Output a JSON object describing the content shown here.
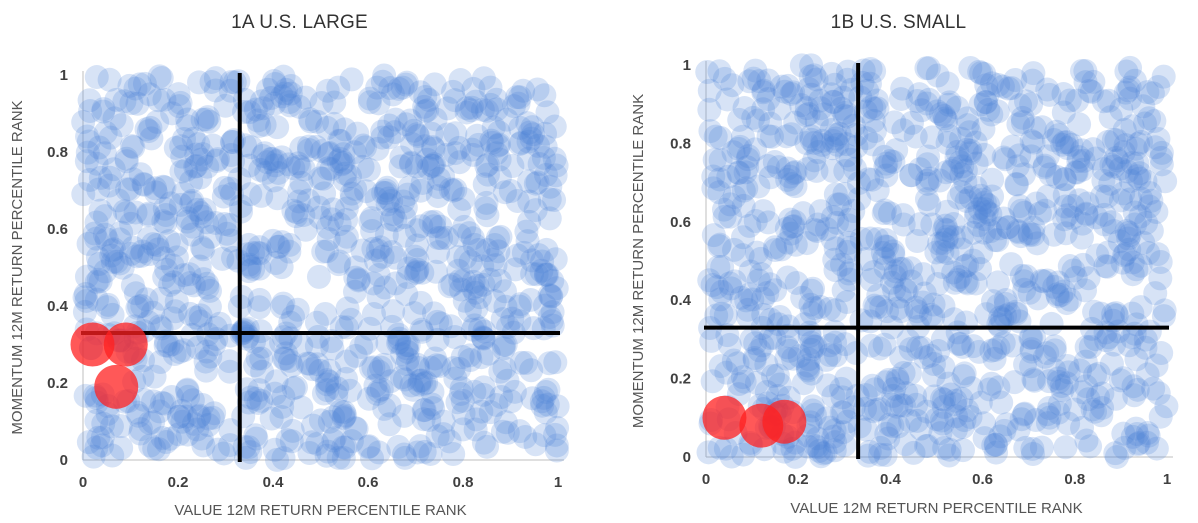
{
  "colors": {
    "bubble": "#4a7fd4",
    "highlight": "#ff2020",
    "quadrant_lines": "#000000",
    "axis_line": "#bfbfbf"
  },
  "chart_data": [
    {
      "type": "scatter",
      "title": "1A U.S. LARGE",
      "xlabel": "VALUE 12M RETURN PERCENTILE RANK",
      "ylabel": "MOMENTUM 12M RETURN PERCENTILE RANK",
      "xlim": [
        0,
        1
      ],
      "ylim": [
        0,
        1
      ],
      "xticks": [
        "0",
        "0.2",
        "0.4",
        "0.6",
        "0.8",
        "1"
      ],
      "yticks": [
        "0",
        "0.2",
        "0.4",
        "0.6",
        "0.8",
        "1"
      ],
      "grid": false,
      "quadrant_lines": {
        "x": 0.33,
        "y": 0.33
      },
      "highlight_points": [
        {
          "x": 0.02,
          "y": 0.3
        },
        {
          "x": 0.09,
          "y": 0.3
        },
        {
          "x": 0.07,
          "y": 0.19
        }
      ],
      "point_count": 1000,
      "seed": 17
    },
    {
      "type": "scatter",
      "title": "1B U.S. SMALL",
      "xlabel": "VALUE 12M RETURN PERCENTILE RANK",
      "ylabel": "MOMENTUM 12M RETURN PERCENTILE RANK",
      "xlim": [
        0,
        1
      ],
      "ylim": [
        0,
        1
      ],
      "xticks": [
        "0",
        "0.2",
        "0.4",
        "0.6",
        "0.8",
        "1"
      ],
      "yticks": [
        "0",
        "0.2",
        "0.4",
        "0.6",
        "0.8",
        "1"
      ],
      "grid": false,
      "quadrant_lines": {
        "x": 0.33,
        "y": 0.33
      },
      "highlight_points": [
        {
          "x": 0.04,
          "y": 0.1
        },
        {
          "x": 0.12,
          "y": 0.08
        },
        {
          "x": 0.17,
          "y": 0.09
        }
      ],
      "point_count": 1000,
      "seed": 29
    }
  ]
}
